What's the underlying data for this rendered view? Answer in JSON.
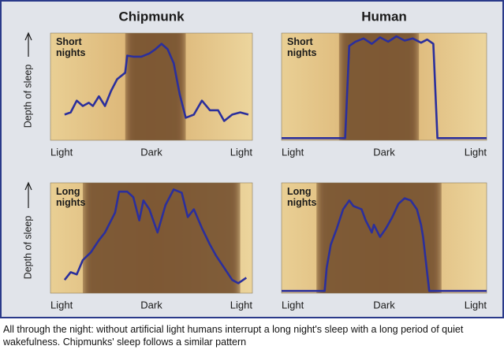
{
  "chart_data": [
    {
      "type": "line",
      "title": "Chipmunk",
      "ylabel": "Depth of sleep",
      "panel_label": "Short nights",
      "color": "#2b2f9c",
      "night": [
        37,
        67
      ],
      "xlim": [
        0,
        100
      ],
      "ylim": [
        0,
        100
      ],
      "xticks": [
        {
          "value": 0,
          "label": "Light"
        },
        {
          "value": 50,
          "label": "Dark"
        },
        {
          "value": 100,
          "label": "Light"
        }
      ],
      "x": [
        7,
        10,
        13,
        16,
        19,
        21,
        24,
        27,
        30,
        33,
        37,
        38,
        41,
        45,
        49,
        52,
        55,
        58,
        61,
        64,
        67,
        71,
        75,
        79,
        83,
        86,
        90,
        94,
        98
      ],
      "values": [
        24,
        26,
        37,
        32,
        35,
        32,
        41,
        32,
        46,
        57,
        63,
        79,
        78,
        78,
        81,
        85,
        90,
        85,
        72,
        43,
        21,
        24,
        37,
        28,
        28,
        18,
        24,
        26,
        24
      ]
    },
    {
      "type": "line",
      "title": "Human",
      "panel_label": "Short nights",
      "color": "#2b2f9c",
      "night": [
        28,
        67
      ],
      "xlim": [
        0,
        100
      ],
      "ylim": [
        0,
        100
      ],
      "xticks": [
        {
          "value": 0,
          "label": "Light"
        },
        {
          "value": 50,
          "label": "Dark"
        },
        {
          "value": 100,
          "label": "Light"
        }
      ],
      "x": [
        0,
        31,
        33,
        36,
        40,
        44,
        48,
        52,
        56,
        60,
        64,
        68,
        71,
        74,
        76,
        100
      ],
      "values": [
        2,
        2,
        88,
        92,
        95,
        90,
        96,
        92,
        97,
        93,
        95,
        91,
        94,
        90,
        2,
        2
      ]
    },
    {
      "type": "line",
      "ylabel": "Depth of sleep",
      "panel_label": "Long nights",
      "color": "#2b2f9c",
      "night": [
        16,
        94
      ],
      "xlim": [
        0,
        100
      ],
      "ylim": [
        0,
        100
      ],
      "xticks": [
        {
          "value": 0,
          "label": "Light"
        },
        {
          "value": 50,
          "label": "Dark"
        },
        {
          "value": 100,
          "label": "Light"
        }
      ],
      "x": [
        7,
        10,
        13,
        16,
        20,
        24,
        27,
        32,
        34,
        38,
        41,
        44,
        46,
        49,
        53,
        57,
        61,
        65,
        68,
        71,
        75,
        79,
        82,
        86,
        90,
        93,
        97
      ],
      "values": [
        12,
        19,
        17,
        30,
        37,
        48,
        55,
        73,
        92,
        92,
        87,
        66,
        84,
        76,
        55,
        80,
        94,
        91,
        69,
        76,
        59,
        44,
        34,
        23,
        12,
        9,
        14
      ]
    },
    {
      "type": "line",
      "panel_label": "Long nights",
      "color": "#2b2f9c",
      "night": [
        17,
        78
      ],
      "xlim": [
        0,
        100
      ],
      "ylim": [
        0,
        100
      ],
      "xticks": [
        {
          "value": 0,
          "label": "Light"
        },
        {
          "value": 50,
          "label": "Dark"
        },
        {
          "value": 100,
          "label": "Light"
        }
      ],
      "x": [
        0,
        21,
        22,
        24,
        27,
        30,
        33,
        35,
        39,
        41,
        44,
        45,
        48,
        51,
        54,
        57,
        60,
        63,
        66,
        68,
        69,
        72,
        100
      ],
      "values": [
        2,
        2,
        23,
        44,
        59,
        76,
        84,
        79,
        76,
        66,
        55,
        62,
        51,
        59,
        69,
        81,
        86,
        84,
        76,
        62,
        51,
        2,
        2
      ]
    }
  ],
  "caption": "All through the night: without artificial light humans interrupt a long night's sleep with a long period of quiet wakefulness. Chipmunks' sleep follows a similar pattern"
}
